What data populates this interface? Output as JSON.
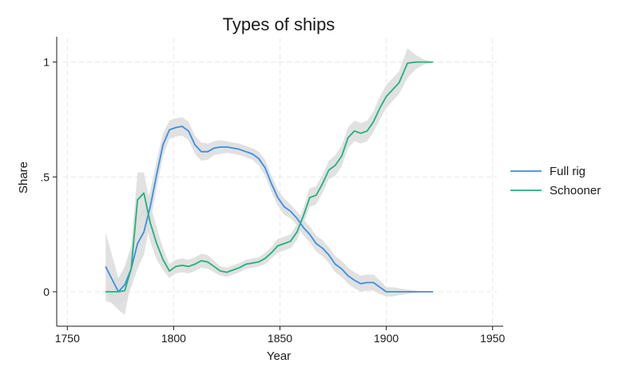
{
  "chart_data": {
    "type": "line",
    "title": "Types of ships",
    "xlabel": "Year",
    "ylabel": "Share",
    "xlim": [
      1745,
      1955
    ],
    "ylim": [
      -0.15,
      1.11
    ],
    "xticks": [
      "1750",
      "1800",
      "1850",
      "1900",
      "1950"
    ],
    "yticks": [
      "0",
      ".5",
      "1"
    ],
    "grid": true,
    "legend": "right",
    "series": [
      {
        "name": "Full rig",
        "color": "#3a8ee6",
        "band_color": "#dcdcdc",
        "x": [
          1768,
          1771,
          1774,
          1777,
          1780,
          1783,
          1786,
          1789,
          1792,
          1795,
          1798,
          1801,
          1804,
          1807,
          1810,
          1813,
          1816,
          1819,
          1822,
          1825,
          1828,
          1831,
          1834,
          1837,
          1840,
          1843,
          1846,
          1849,
          1852,
          1855,
          1858,
          1861,
          1864,
          1867,
          1870,
          1873,
          1876,
          1879,
          1882,
          1885,
          1888,
          1891,
          1894,
          1897,
          1900,
          1903,
          1906,
          1910,
          1914,
          1918,
          1922
        ],
        "values": [
          0.11,
          0.055,
          0.0,
          0.03,
          0.1,
          0.21,
          0.26,
          0.37,
          0.51,
          0.64,
          0.705,
          0.715,
          0.72,
          0.7,
          0.64,
          0.61,
          0.61,
          0.625,
          0.63,
          0.63,
          0.625,
          0.62,
          0.61,
          0.6,
          0.58,
          0.54,
          0.47,
          0.41,
          0.37,
          0.35,
          0.32,
          0.28,
          0.25,
          0.21,
          0.19,
          0.16,
          0.12,
          0.1,
          0.07,
          0.05,
          0.035,
          0.04,
          0.04,
          0.02,
          0.0,
          0.0,
          0.0,
          0.0,
          0.0,
          0.0,
          0.0
        ],
        "lower": [
          -0.04,
          -0.05,
          -0.06,
          -0.04,
          0.02,
          0.1,
          0.16,
          0.3,
          0.45,
          0.59,
          0.665,
          0.675,
          0.68,
          0.66,
          0.6,
          0.57,
          0.575,
          0.595,
          0.6,
          0.605,
          0.6,
          0.595,
          0.585,
          0.575,
          0.55,
          0.505,
          0.435,
          0.375,
          0.335,
          0.32,
          0.29,
          0.245,
          0.215,
          0.175,
          0.155,
          0.125,
          0.085,
          0.065,
          0.035,
          0.015,
          0.0,
          0.005,
          0.005,
          -0.01,
          -0.02,
          -0.02,
          -0.015,
          -0.01,
          -0.005,
          0.0,
          0.0
        ],
        "upper": [
          0.26,
          0.16,
          0.06,
          0.1,
          0.18,
          0.32,
          0.36,
          0.44,
          0.57,
          0.69,
          0.745,
          0.755,
          0.76,
          0.74,
          0.68,
          0.65,
          0.645,
          0.655,
          0.66,
          0.655,
          0.65,
          0.645,
          0.635,
          0.625,
          0.61,
          0.575,
          0.505,
          0.445,
          0.405,
          0.38,
          0.35,
          0.315,
          0.285,
          0.245,
          0.225,
          0.195,
          0.155,
          0.135,
          0.105,
          0.085,
          0.07,
          0.075,
          0.075,
          0.05,
          0.02,
          0.02,
          0.015,
          0.01,
          0.005,
          0.0,
          0.0
        ]
      },
      {
        "name": "Schooner",
        "color": "#1fb37a",
        "band_color": "#dcdcdc",
        "x": [
          1768,
          1771,
          1774,
          1777,
          1780,
          1783,
          1786,
          1789,
          1792,
          1795,
          1798,
          1801,
          1804,
          1807,
          1810,
          1813,
          1816,
          1819,
          1822,
          1825,
          1828,
          1831,
          1834,
          1837,
          1840,
          1843,
          1846,
          1849,
          1852,
          1855,
          1858,
          1861,
          1864,
          1867,
          1870,
          1873,
          1876,
          1879,
          1882,
          1885,
          1888,
          1891,
          1894,
          1897,
          1900,
          1903,
          1906,
          1910,
          1914,
          1918,
          1922
        ],
        "values": [
          0.0,
          0.0,
          0.0,
          0.005,
          0.1,
          0.4,
          0.43,
          0.3,
          0.21,
          0.14,
          0.09,
          0.11,
          0.115,
          0.11,
          0.12,
          0.135,
          0.13,
          0.11,
          0.09,
          0.085,
          0.095,
          0.105,
          0.12,
          0.125,
          0.13,
          0.145,
          0.17,
          0.2,
          0.21,
          0.22,
          0.26,
          0.33,
          0.41,
          0.42,
          0.47,
          0.53,
          0.55,
          0.59,
          0.67,
          0.7,
          0.69,
          0.7,
          0.74,
          0.8,
          0.85,
          0.88,
          0.91,
          0.995,
          1.0,
          1.0,
          1.0
        ],
        "lower": [
          0.0,
          -0.05,
          -0.08,
          -0.1,
          0.04,
          0.3,
          0.34,
          0.22,
          0.14,
          0.095,
          0.06,
          0.08,
          0.085,
          0.08,
          0.09,
          0.105,
          0.1,
          0.085,
          0.07,
          0.065,
          0.075,
          0.085,
          0.1,
          0.105,
          0.11,
          0.12,
          0.145,
          0.17,
          0.18,
          0.19,
          0.225,
          0.295,
          0.37,
          0.38,
          0.43,
          0.49,
          0.505,
          0.545,
          0.625,
          0.655,
          0.645,
          0.655,
          0.695,
          0.75,
          0.8,
          0.83,
          0.86,
          0.93,
          0.97,
          0.99,
          1.0
        ],
        "upper": [
          0.0,
          0.05,
          0.06,
          0.11,
          0.2,
          0.52,
          0.52,
          0.38,
          0.28,
          0.19,
          0.12,
          0.14,
          0.145,
          0.14,
          0.15,
          0.165,
          0.16,
          0.135,
          0.11,
          0.105,
          0.115,
          0.125,
          0.14,
          0.145,
          0.15,
          0.17,
          0.195,
          0.23,
          0.24,
          0.25,
          0.295,
          0.365,
          0.45,
          0.46,
          0.51,
          0.57,
          0.595,
          0.635,
          0.715,
          0.745,
          0.735,
          0.745,
          0.785,
          0.85,
          0.9,
          0.93,
          0.96,
          1.06,
          1.03,
          1.01,
          1.0
        ]
      }
    ]
  }
}
